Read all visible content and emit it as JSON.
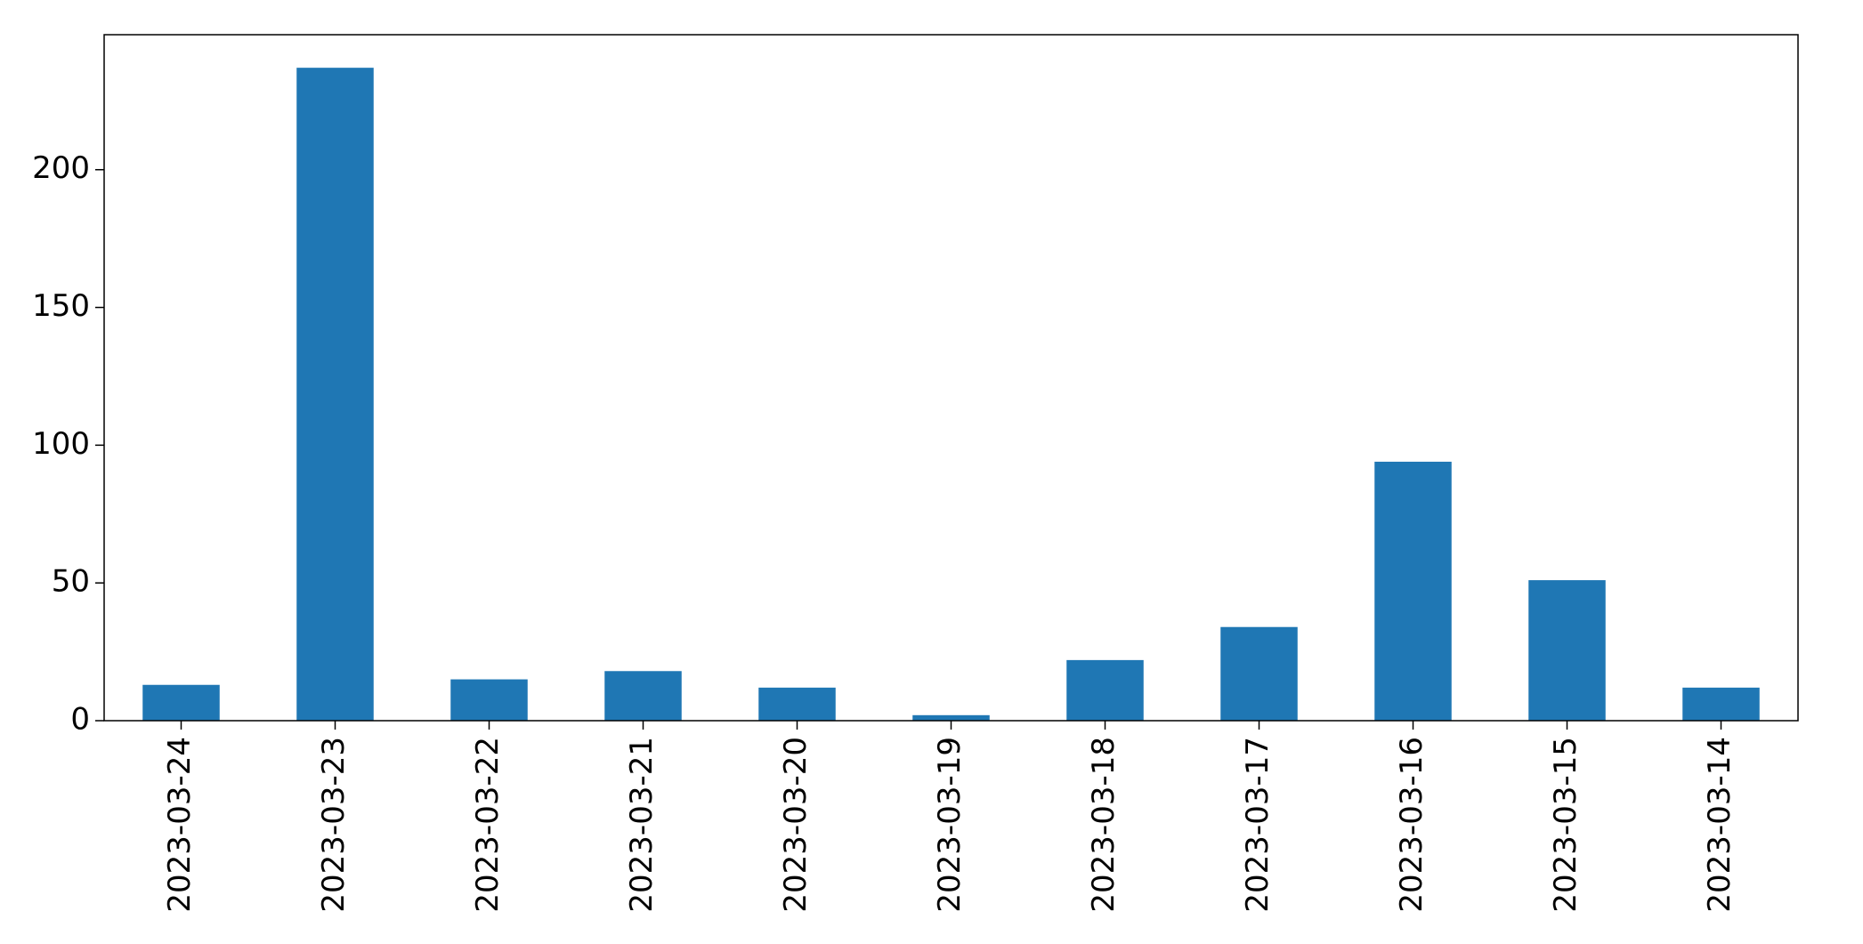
{
  "chart_data": {
    "type": "bar",
    "title": "",
    "xlabel": "",
    "ylabel": "",
    "categories": [
      "2023-03-24",
      "2023-03-23",
      "2023-03-22",
      "2023-03-21",
      "2023-03-20",
      "2023-03-19",
      "2023-03-18",
      "2023-03-17",
      "2023-03-16",
      "2023-03-15",
      "2023-03-14"
    ],
    "values": [
      13,
      237,
      15,
      18,
      12,
      2,
      22,
      34,
      94,
      51,
      12
    ],
    "ylim": [
      0,
      249
    ],
    "yticks": [
      0,
      50,
      100,
      150,
      200
    ],
    "ytick_labels": [
      "0",
      "50",
      "100",
      "150",
      "200"
    ],
    "bar_color": "#1f77b4",
    "grid": false,
    "legend": "none"
  }
}
